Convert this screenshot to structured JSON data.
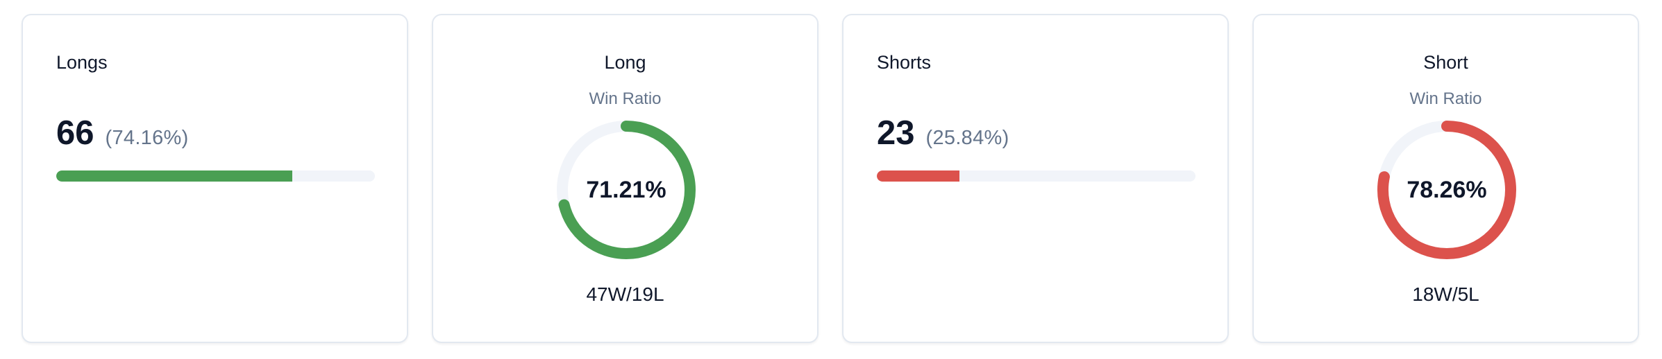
{
  "colors": {
    "long": "#4a9f53",
    "short": "#dc524c",
    "track": "#f1f4f9"
  },
  "cards": [
    {
      "type": "count",
      "title": "Longs",
      "value": "66",
      "percent_label": "(74.16%)",
      "percent": 74.16,
      "color": "#4a9f53"
    },
    {
      "type": "ratio",
      "title": "Long",
      "subtitle": "Win Ratio",
      "ratio_label": "71.21%",
      "ratio": 71.21,
      "record": "47W/19L",
      "color": "#4a9f53"
    },
    {
      "type": "count",
      "title": "Shorts",
      "value": "23",
      "percent_label": "(25.84%)",
      "percent": 25.84,
      "color": "#dc524c"
    },
    {
      "type": "ratio",
      "title": "Short",
      "subtitle": "Win Ratio",
      "ratio_label": "78.26%",
      "ratio": 78.26,
      "record": "18W/5L",
      "color": "#dc524c"
    }
  ]
}
